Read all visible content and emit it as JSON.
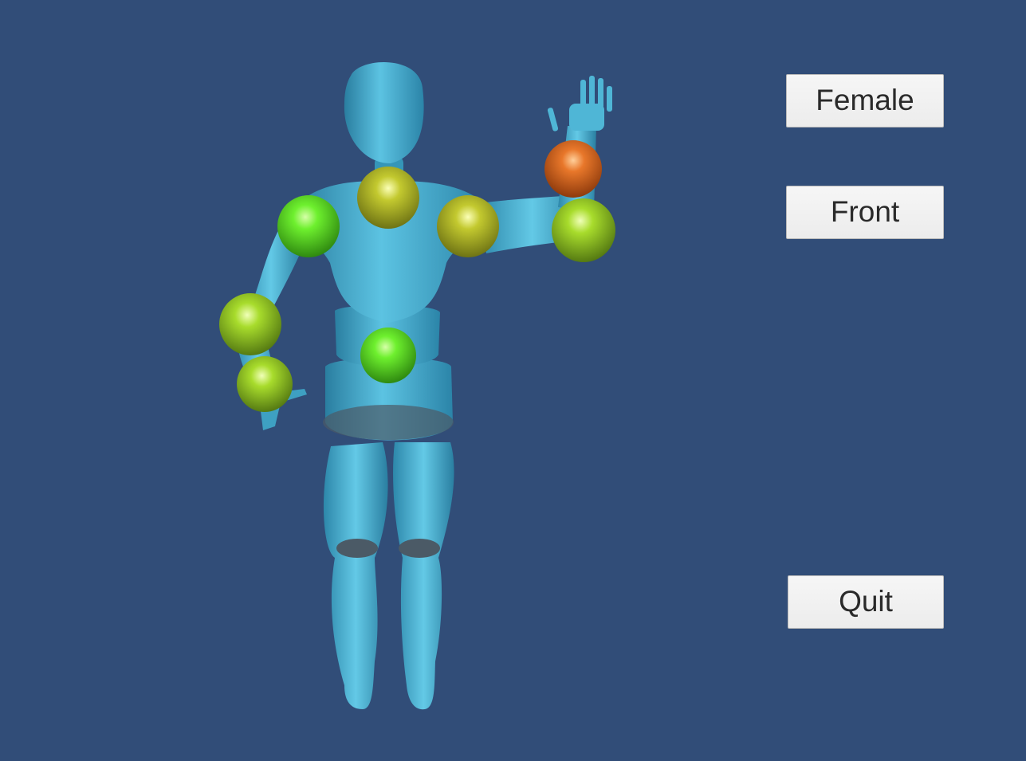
{
  "colors": {
    "background": "#314d78",
    "mannequin": "#3fa3c4",
    "joint_green": "#55e01f",
    "joint_lime": "#98d128",
    "joint_olive": "#b8c12a",
    "joint_selected": "#e26a1c"
  },
  "buttons": {
    "female_label": "Female",
    "front_label": "Front",
    "quit_label": "Quit"
  },
  "joints": [
    {
      "name": "neck-joint",
      "color": "olive"
    },
    {
      "name": "right-shoulder-joint",
      "color": "green"
    },
    {
      "name": "left-shoulder-joint",
      "color": "olive"
    },
    {
      "name": "left-elbow-joint",
      "color": "lime"
    },
    {
      "name": "left-wrist-joint",
      "color": "selected"
    },
    {
      "name": "right-elbow-joint",
      "color": "lime"
    },
    {
      "name": "right-wrist-joint",
      "color": "lime"
    },
    {
      "name": "pelvis-joint",
      "color": "green"
    }
  ]
}
